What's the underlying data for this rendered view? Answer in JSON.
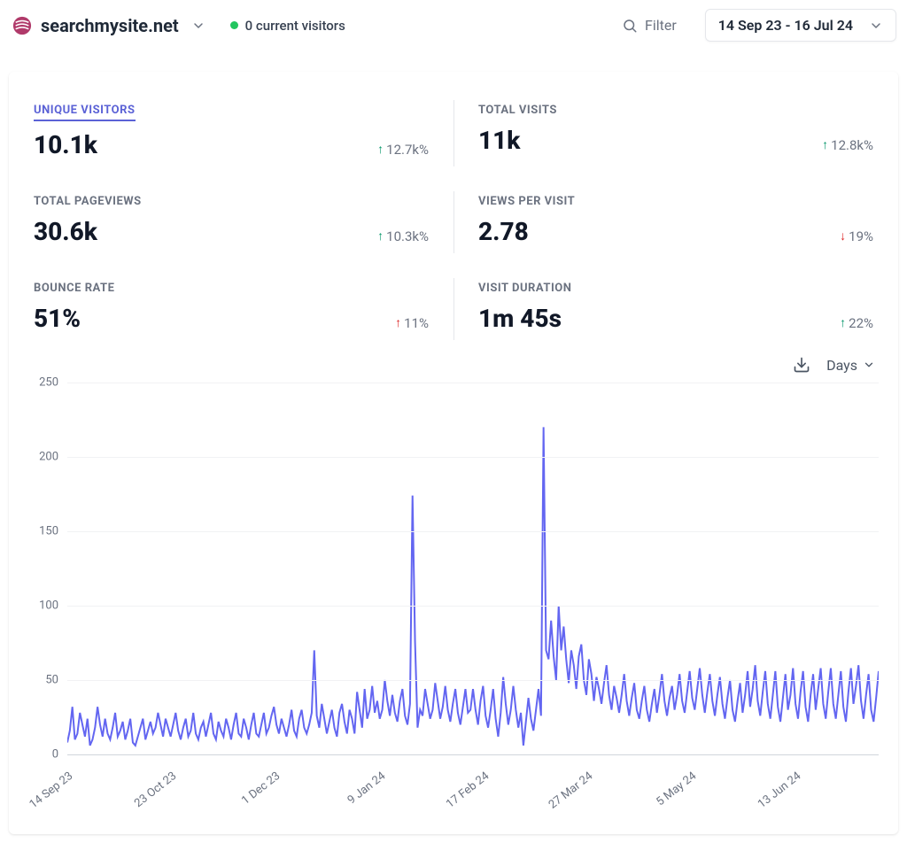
{
  "header": {
    "site_name": "searchmysite.net",
    "visitors_text": "0 current visitors",
    "filter_label": "Filter",
    "date_range": "14 Sep 23 - 16 Jul 24"
  },
  "metrics": [
    {
      "key": "unique_visitors",
      "label": "UNIQUE VISITORS",
      "value": "10.1k",
      "delta": "12.7k%",
      "direction": "up",
      "good": true,
      "active": true
    },
    {
      "key": "total_visits",
      "label": "TOTAL VISITS",
      "value": "11k",
      "delta": "12.8k%",
      "direction": "up",
      "good": true,
      "active": false
    },
    {
      "key": "total_pageviews",
      "label": "TOTAL PAGEVIEWS",
      "value": "30.6k",
      "delta": "10.3k%",
      "direction": "up",
      "good": true,
      "active": false
    },
    {
      "key": "views_per_visit",
      "label": "VIEWS PER VISIT",
      "value": "2.78",
      "delta": "19%",
      "direction": "down",
      "good": false,
      "active": false
    },
    {
      "key": "bounce_rate",
      "label": "BOUNCE RATE",
      "value": "51%",
      "delta": "11%",
      "direction": "up",
      "good": false,
      "active": false
    },
    {
      "key": "visit_duration",
      "label": "VISIT DURATION",
      "value": "1m 45s",
      "delta": "22%",
      "direction": "up",
      "good": true,
      "active": false
    }
  ],
  "chart_controls": {
    "granularity": "Days"
  },
  "chart": {
    "type": "line",
    "line_color": "#6366f1",
    "line_width": 2,
    "background_color": "#ffffff",
    "grid_color": "#f1f2f4",
    "baseline_color": "#d1d5db",
    "axis_text_color": "#6b7280",
    "label_fontsize": 13,
    "ylim": [
      0,
      250
    ],
    "y_ticks": [
      0,
      50,
      100,
      150,
      200,
      250
    ],
    "x_labels": [
      "14 Sep 23",
      "23 Oct 23",
      "1 Dec 23",
      "9 Jan 24",
      "17 Feb 24",
      "27 Mar 24",
      "5 May 24",
      "13 Jun 24"
    ],
    "x_label_positions_pct": [
      0,
      12.8,
      25.6,
      38.5,
      51.3,
      64.1,
      76.9,
      89.7
    ],
    "values": [
      8,
      16,
      32,
      10,
      14,
      28,
      20,
      12,
      24,
      6,
      10,
      18,
      32,
      20,
      12,
      24,
      14,
      10,
      18,
      28,
      12,
      16,
      22,
      10,
      16,
      24,
      8,
      6,
      12,
      18,
      24,
      10,
      16,
      22,
      14,
      18,
      28,
      20,
      12,
      24,
      18,
      12,
      20,
      28,
      16,
      10,
      18,
      24,
      12,
      16,
      28,
      14,
      10,
      18,
      22,
      12,
      20,
      28,
      14,
      10,
      22,
      16,
      12,
      24,
      18,
      10,
      20,
      28,
      14,
      12,
      24,
      18,
      10,
      20,
      28,
      14,
      12,
      20,
      28,
      14,
      18,
      26,
      32,
      20,
      14,
      24,
      18,
      12,
      20,
      30,
      16,
      12,
      24,
      30,
      18,
      14,
      20,
      28,
      70,
      26,
      18,
      34,
      24,
      14,
      22,
      30,
      18,
      12,
      28,
      34,
      22,
      14,
      30,
      24,
      14,
      42,
      30,
      18,
      44,
      24,
      30,
      46,
      28,
      36,
      24,
      30,
      50,
      36,
      26,
      40,
      28,
      22,
      36,
      44,
      26,
      20,
      34,
      174,
      76,
      18,
      30,
      26,
      44,
      34,
      24,
      30,
      48,
      36,
      24,
      32,
      46,
      30,
      22,
      34,
      44,
      28,
      20,
      32,
      44,
      28,
      30,
      44,
      30,
      20,
      36,
      46,
      26,
      18,
      30,
      44,
      24,
      12,
      28,
      52,
      34,
      20,
      30,
      46,
      30,
      18,
      28,
      6,
      22,
      38,
      24,
      16,
      30,
      44,
      26,
      220,
      70,
      64,
      90,
      66,
      50,
      100,
      70,
      86,
      64,
      48,
      70,
      60,
      44,
      66,
      74,
      50,
      40,
      64,
      54,
      36,
      52,
      44,
      34,
      48,
      60,
      40,
      30,
      46,
      38,
      28,
      40,
      54,
      36,
      26,
      38,
      48,
      30,
      24,
      36,
      46,
      30,
      22,
      34,
      44,
      28,
      40,
      54,
      36,
      26,
      38,
      46,
      30,
      40,
      54,
      36,
      28,
      42,
      56,
      38,
      30,
      44,
      58,
      40,
      28,
      42,
      54,
      36,
      26,
      40,
      52,
      34,
      24,
      38,
      50,
      30,
      22,
      36,
      48,
      28,
      40,
      56,
      32,
      44,
      60,
      36,
      26,
      42,
      56,
      34,
      24,
      40,
      56,
      32,
      22,
      38,
      54,
      30,
      40,
      58,
      34,
      24,
      42,
      56,
      32,
      22,
      40,
      54,
      30,
      44,
      58,
      34,
      24,
      42,
      58,
      34,
      24,
      40,
      56,
      32,
      22,
      42,
      58,
      34,
      46,
      60,
      36,
      24,
      40,
      54,
      30,
      22,
      38,
      56
    ]
  }
}
